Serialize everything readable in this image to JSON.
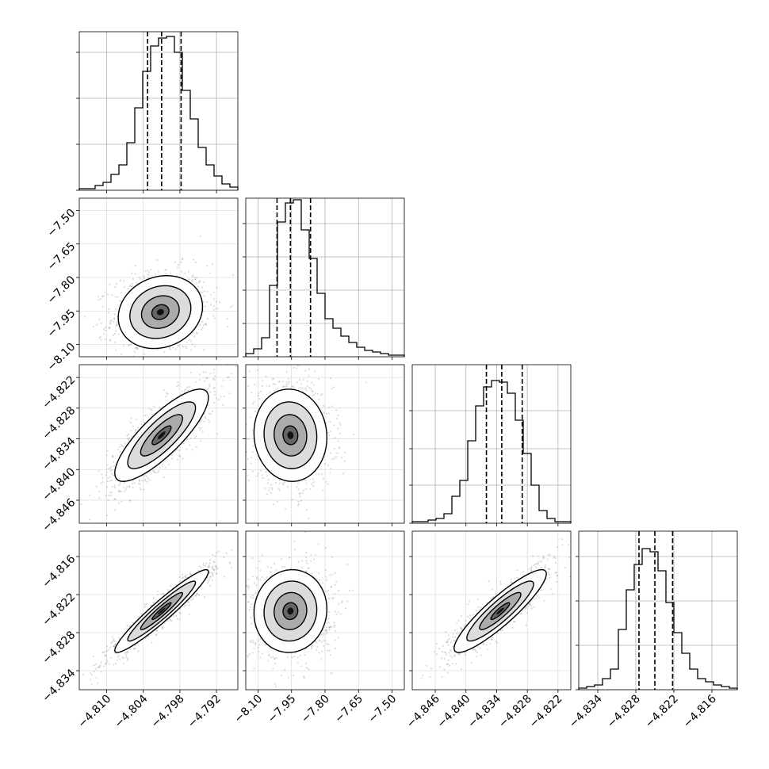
{
  "chart_data": {
    "type": "corner",
    "title": "",
    "parameters": [
      {
        "label": "",
        "range": [
          -4.8145,
          -4.7885
        ],
        "ticks": [
          "−4.810",
          "−4.804",
          "−4.798",
          "−4.792"
        ],
        "tick_values": [
          -4.81,
          -4.804,
          -4.798,
          -4.792
        ],
        "quantiles": [
          -4.8033,
          -4.801,
          -4.7978
        ],
        "histogram": [
          0.01,
          0.01,
          0.03,
          0.05,
          0.1,
          0.16,
          0.3,
          0.52,
          0.75,
          0.91,
          0.96,
          0.97,
          0.87,
          0.63,
          0.45,
          0.27,
          0.16,
          0.09,
          0.04,
          0.02
        ],
        "hist_yticks": [
          0.0,
          0.29,
          0.58,
          0.87
        ],
        "hist_ylim": [
          0,
          1.0
        ]
      },
      {
        "label": "",
        "range": [
          -8.155,
          -7.445
        ],
        "ticks": [
          "−8.10",
          "−7.95",
          "−7.80",
          "−7.65",
          "−7.50"
        ],
        "tick_values": [
          -8.1,
          -7.95,
          -7.8,
          -7.65,
          -7.5
        ],
        "quantiles": [
          -8.015,
          -7.955,
          -7.865
        ],
        "histogram": [
          0.02,
          0.05,
          0.12,
          0.45,
          0.85,
          0.97,
          0.99,
          0.8,
          0.62,
          0.4,
          0.24,
          0.18,
          0.13,
          0.09,
          0.06,
          0.04,
          0.03,
          0.02,
          0.01,
          0.01
        ],
        "hist_yticks": [
          0.0,
          0.21,
          0.42,
          0.63,
          0.84
        ],
        "hist_ylim": [
          0,
          1.0
        ]
      },
      {
        "label": "",
        "range": [
          -4.8505,
          -4.8195
        ],
        "ticks": [
          "−4.846",
          "−4.840",
          "−4.834",
          "−4.828",
          "−4.822"
        ],
        "tick_values": [
          -4.846,
          -4.84,
          -4.834,
          -4.828,
          -4.822
        ],
        "quantiles": [
          -4.836,
          -4.833,
          -4.829
        ],
        "histogram": [
          0.01,
          0.01,
          0.02,
          0.03,
          0.06,
          0.17,
          0.27,
          0.52,
          0.74,
          0.86,
          0.9,
          0.89,
          0.82,
          0.65,
          0.44,
          0.24,
          0.08,
          0.03,
          0.01,
          0.01
        ],
        "hist_yticks": [
          0.0,
          0.24,
          0.47,
          0.71
        ],
        "hist_ylim": [
          0,
          1.0
        ]
      },
      {
        "label": "",
        "range": [
          -4.837,
          -4.812
        ],
        "ticks": [
          "−4.834",
          "−4.828",
          "−4.822",
          "−4.816"
        ],
        "tick_values": [
          -4.834,
          -4.828,
          -4.822,
          -4.816
        ],
        "quantiles": [
          -4.8275,
          -4.825,
          -4.8222
        ],
        "histogram": [
          0.01,
          0.02,
          0.03,
          0.07,
          0.13,
          0.38,
          0.63,
          0.79,
          0.89,
          0.87,
          0.75,
          0.55,
          0.36,
          0.23,
          0.13,
          0.07,
          0.05,
          0.03,
          0.02,
          0.01
        ],
        "hist_yticks": [
          0.0,
          0.28,
          0.56,
          0.84
        ],
        "hist_ylim": [
          0,
          1.0
        ]
      }
    ],
    "pairs": [
      {
        "x": 0,
        "y": 1,
        "mean": [
          -4.8012,
          -7.955
        ],
        "sd": [
          0.0036,
          0.085
        ],
        "corr": 0.15,
        "contours": [
          0.39,
          0.86,
          1.39,
          1.92
        ]
      },
      {
        "x": 0,
        "y": 2,
        "mean": [
          -4.801,
          -4.8333
        ],
        "sd": [
          0.004,
          0.0047
        ],
        "corr": 0.82,
        "contours": [
          0.39,
          0.86,
          1.39,
          1.92
        ]
      },
      {
        "x": 1,
        "y": 2,
        "mean": [
          -7.955,
          -4.8333
        ],
        "sd": [
          0.085,
          0.0047
        ],
        "corr": -0.05,
        "contours": [
          0.39,
          0.86,
          1.39,
          1.92
        ]
      },
      {
        "x": 0,
        "y": 3,
        "mean": [
          -4.801,
          -4.8246
        ],
        "sd": [
          0.004,
          0.0034
        ],
        "corr": 0.95,
        "contours": [
          0.39,
          0.86,
          1.39,
          1.92
        ]
      },
      {
        "x": 1,
        "y": 3,
        "mean": [
          -7.955,
          -4.8246
        ],
        "sd": [
          0.085,
          0.0034
        ],
        "corr": 0.05,
        "contours": [
          0.39,
          0.86,
          1.39,
          1.92
        ]
      },
      {
        "x": 2,
        "y": 3,
        "mean": [
          -4.8333,
          -4.8246
        ],
        "sd": [
          0.0047,
          0.0034
        ],
        "corr": 0.9,
        "contours": [
          0.39,
          0.86,
          1.39,
          1.92
        ]
      }
    ],
    "grid": true,
    "scatter_color": "#808080",
    "line_color": "#000000"
  }
}
